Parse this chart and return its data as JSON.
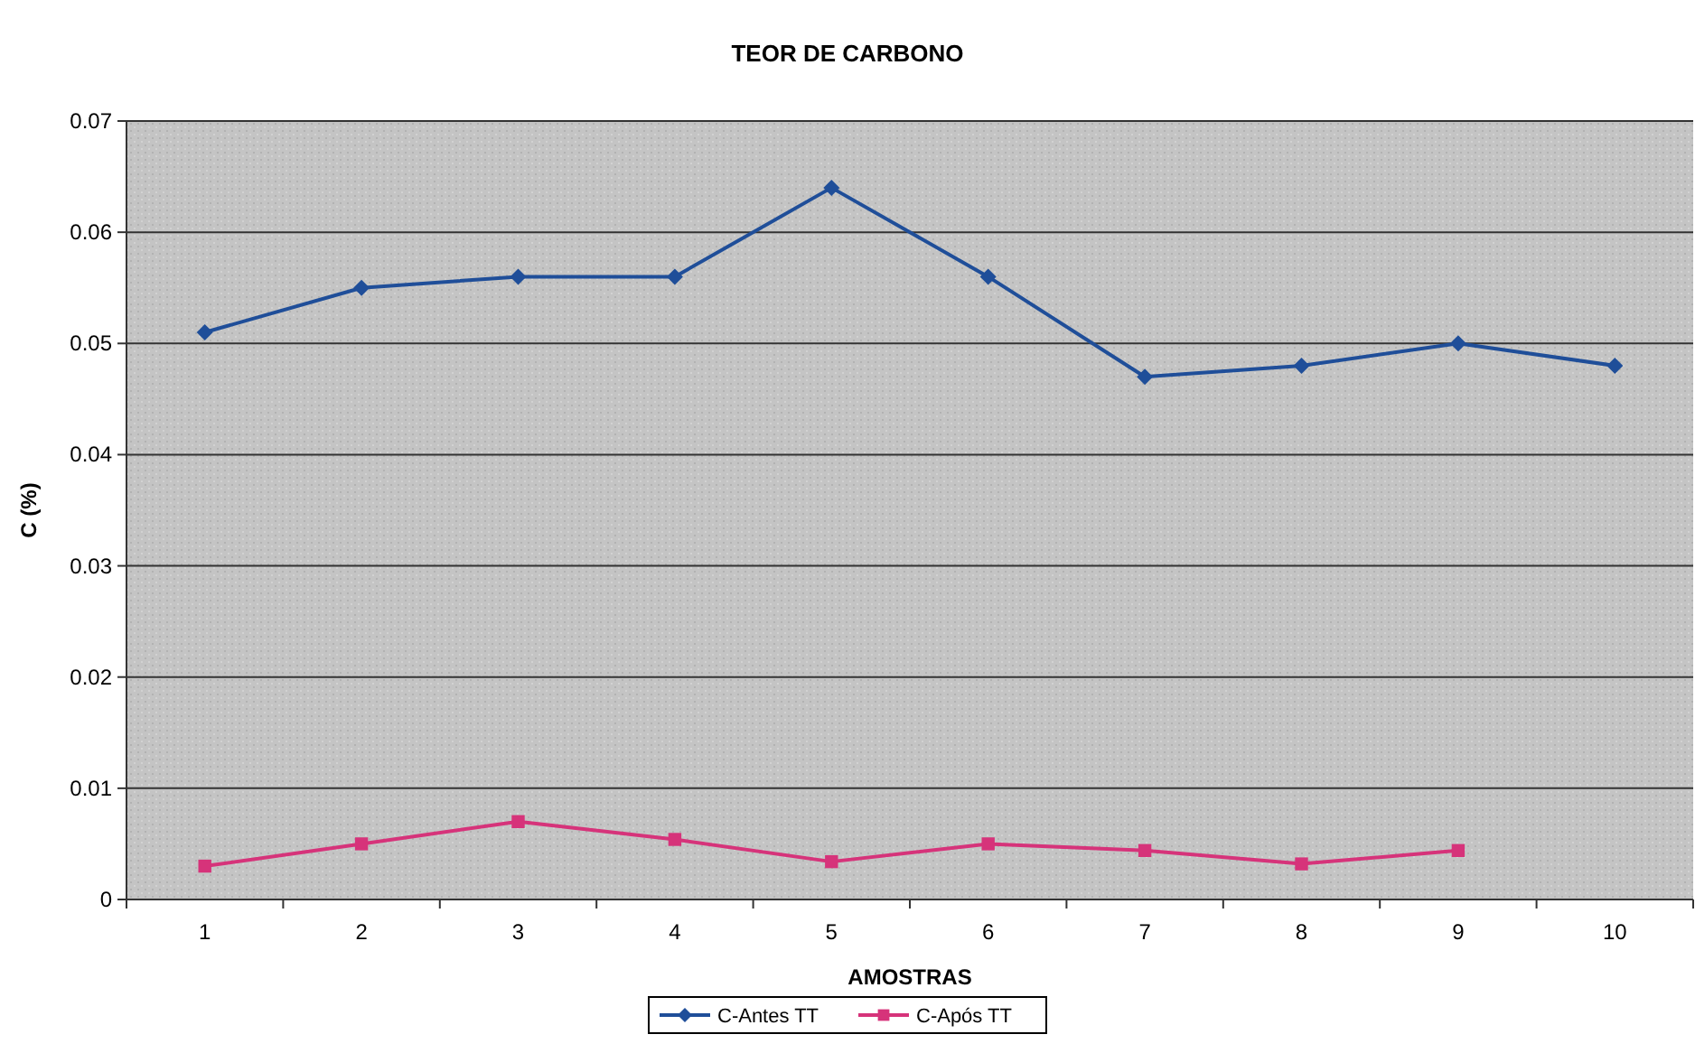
{
  "chart_data": {
    "type": "line",
    "title": "TEOR DE CARBONO",
    "xlabel": "AMOSTRAS",
    "ylabel": "C (%)",
    "categories": [
      "1",
      "2",
      "3",
      "4",
      "5",
      "6",
      "7",
      "8",
      "9",
      "10"
    ],
    "series": [
      {
        "name": "C-Antes TT",
        "color": "#1f4e99",
        "marker": "diamond",
        "values": [
          0.051,
          0.055,
          0.056,
          0.056,
          0.064,
          0.056,
          0.047,
          0.048,
          0.05,
          0.048
        ]
      },
      {
        "name": "C-Após TT",
        "color": "#d6337a",
        "marker": "square",
        "values": [
          0.003,
          0.005,
          0.007,
          0.0054,
          0.0034,
          0.005,
          0.0044,
          0.0032,
          0.0044,
          null
        ]
      }
    ],
    "ylim": [
      0,
      0.07
    ],
    "yticks": [
      {
        "value": 0,
        "label": "0"
      },
      0.01,
      0.02,
      0.03,
      0.04,
      0.05,
      0.06,
      0.07
    ],
    "grid": "y",
    "legend": "bottom"
  }
}
